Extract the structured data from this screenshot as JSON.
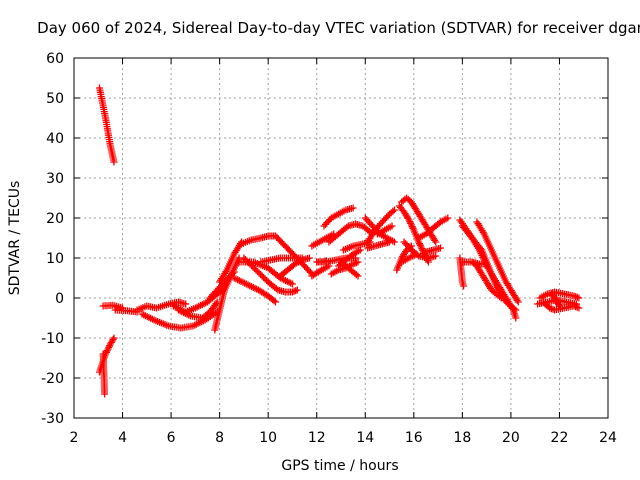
{
  "chart_data": {
    "type": "scatter",
    "title": "Day 060 of 2024, Sidereal Day-to-day VTEC variation (SDTVAR) for receiver dgar",
    "xlabel": "GPS time / hours",
    "ylabel": "SDTVAR / TECUs",
    "xlim": [
      2,
      24
    ],
    "ylim": [
      -30,
      60
    ],
    "xticks": [
      2,
      4,
      6,
      8,
      10,
      12,
      14,
      16,
      18,
      20,
      22,
      24
    ],
    "yticks": [
      -30,
      -20,
      -10,
      0,
      10,
      20,
      30,
      40,
      50,
      60
    ],
    "grid": true,
    "marker": "+",
    "color": "#ff0000",
    "tracks": [
      [
        [
          3.05,
          52.5
        ],
        [
          3.3,
          45
        ],
        [
          3.5,
          38
        ],
        [
          3.65,
          34
        ]
      ],
      [
        [
          3.05,
          -18.5
        ],
        [
          3.3,
          -14
        ],
        [
          3.5,
          -11.5
        ],
        [
          3.65,
          -10
        ]
      ],
      [
        [
          3.2,
          -14
        ],
        [
          3.22,
          -17
        ],
        [
          3.24,
          -20
        ],
        [
          3.26,
          -24
        ]
      ],
      [
        [
          3.2,
          -2
        ],
        [
          3.6,
          -1.8
        ],
        [
          4.0,
          -2.5
        ]
      ],
      [
        [
          3.7,
          -3
        ],
        [
          4.2,
          -3.2
        ],
        [
          4.6,
          -3.5
        ]
      ],
      [
        [
          4.6,
          -3
        ],
        [
          5.0,
          -2
        ],
        [
          5.4,
          -2.5
        ],
        [
          5.9,
          -1.5
        ],
        [
          6.3,
          -1
        ],
        [
          6.6,
          -1.5
        ]
      ],
      [
        [
          4.8,
          -4
        ],
        [
          5.3,
          -5.5
        ],
        [
          5.9,
          -7
        ],
        [
          6.4,
          -7.5
        ],
        [
          6.9,
          -7
        ],
        [
          7.4,
          -5.5
        ],
        [
          7.9,
          -3.5
        ]
      ],
      [
        [
          6.1,
          -2
        ],
        [
          6.6,
          -3.5
        ],
        [
          7.0,
          -2.5
        ],
        [
          7.5,
          -1
        ],
        [
          7.9,
          1
        ],
        [
          8.2,
          2.5
        ]
      ],
      [
        [
          6.3,
          -3
        ],
        [
          6.8,
          -4.5
        ],
        [
          7.3,
          -5
        ],
        [
          7.6,
          -3.5
        ],
        [
          7.9,
          -1
        ]
      ],
      [
        [
          7.8,
          -8
        ],
        [
          8.0,
          -3
        ],
        [
          8.2,
          2
        ],
        [
          8.5,
          6
        ],
        [
          8.8,
          10
        ]
      ],
      [
        [
          7.6,
          0
        ],
        [
          7.9,
          2
        ],
        [
          8.2,
          4
        ],
        [
          8.6,
          6.5
        ]
      ],
      [
        [
          8.0,
          4
        ],
        [
          8.3,
          7
        ],
        [
          8.6,
          11
        ],
        [
          8.9,
          14
        ]
      ],
      [
        [
          8.9,
          13.5
        ],
        [
          9.3,
          14.5
        ],
        [
          9.7,
          15
        ],
        [
          10.0,
          15.5
        ],
        [
          10.3,
          15.5
        ]
      ],
      [
        [
          9.0,
          10
        ],
        [
          9.5,
          7
        ],
        [
          10.0,
          4
        ],
        [
          10.4,
          2
        ],
        [
          10.7,
          1.5
        ],
        [
          11.0,
          1.5
        ],
        [
          11.2,
          2
        ]
      ],
      [
        [
          8.8,
          9
        ],
        [
          9.4,
          9
        ],
        [
          10.0,
          7.5
        ],
        [
          10.5,
          5
        ],
        [
          11.0,
          3.5
        ]
      ],
      [
        [
          8.6,
          5
        ],
        [
          9.1,
          3.5
        ],
        [
          9.6,
          2
        ],
        [
          10.0,
          0.5
        ],
        [
          10.3,
          -1
        ]
      ],
      [
        [
          10.3,
          15.5
        ],
        [
          10.7,
          13
        ],
        [
          11.1,
          10.5
        ],
        [
          11.5,
          8
        ],
        [
          11.8,
          6
        ]
      ],
      [
        [
          9.7,
          9
        ],
        [
          10.1,
          9.5
        ],
        [
          10.5,
          10
        ],
        [
          11.0,
          10
        ],
        [
          11.4,
          10
        ]
      ],
      [
        [
          10.5,
          5.5
        ],
        [
          10.8,
          7
        ],
        [
          11.1,
          8.5
        ],
        [
          11.4,
          9.5
        ],
        [
          11.7,
          10
        ]
      ],
      [
        [
          11.8,
          5.5
        ],
        [
          12.2,
          7
        ],
        [
          12.5,
          8
        ]
      ],
      [
        [
          12.0,
          9
        ],
        [
          12.2,
          9
        ],
        [
          12.4,
          9.3
        ]
      ],
      [
        [
          11.8,
          13
        ],
        [
          12.1,
          14
        ],
        [
          12.4,
          15
        ],
        [
          12.7,
          16
        ]
      ],
      [
        [
          12.3,
          18
        ],
        [
          12.6,
          20
        ],
        [
          12.9,
          21
        ],
        [
          13.2,
          22
        ],
        [
          13.5,
          22.5
        ]
      ],
      [
        [
          12.5,
          14
        ],
        [
          12.9,
          16
        ],
        [
          13.3,
          18
        ],
        [
          13.6,
          18.5
        ],
        [
          13.9,
          18
        ],
        [
          14.3,
          16
        ]
      ],
      [
        [
          12.4,
          9
        ],
        [
          12.8,
          9.5
        ],
        [
          13.2,
          10
        ],
        [
          13.6,
          10
        ]
      ],
      [
        [
          12.9,
          8
        ],
        [
          13.1,
          9
        ],
        [
          13.3,
          10
        ],
        [
          13.5,
          11
        ],
        [
          13.8,
          12
        ]
      ],
      [
        [
          13.0,
          9
        ],
        [
          13.3,
          7.5
        ],
        [
          13.5,
          6.5
        ],
        [
          13.7,
          5.5
        ]
      ],
      [
        [
          12.6,
          6
        ],
        [
          12.9,
          7
        ],
        [
          13.2,
          7.5
        ],
        [
          13.5,
          8.5
        ],
        [
          13.7,
          9
        ]
      ],
      [
        [
          13.1,
          12
        ],
        [
          13.5,
          13
        ],
        [
          13.9,
          13.5
        ],
        [
          14.2,
          14
        ]
      ],
      [
        [
          14.1,
          12.5
        ],
        [
          14.4,
          13
        ],
        [
          14.7,
          13.5
        ],
        [
          15.0,
          14
        ]
      ],
      [
        [
          14.0,
          20
        ],
        [
          14.3,
          18
        ],
        [
          14.6,
          16
        ],
        [
          14.9,
          15
        ],
        [
          15.2,
          14
        ]
      ],
      [
        [
          14.1,
          14
        ],
        [
          14.4,
          17
        ],
        [
          14.7,
          19
        ],
        [
          15.0,
          21
        ],
        [
          15.2,
          22
        ]
      ],
      [
        [
          14.5,
          16
        ],
        [
          14.8,
          17
        ],
        [
          15.1,
          18
        ]
      ],
      [
        [
          15.3,
          7
        ],
        [
          15.5,
          10
        ],
        [
          15.7,
          12
        ],
        [
          15.9,
          13
        ]
      ],
      [
        [
          15.5,
          24
        ],
        [
          15.7,
          25
        ],
        [
          15.9,
          24
        ],
        [
          16.1,
          22
        ],
        [
          16.3,
          20
        ],
        [
          16.5,
          18
        ],
        [
          16.7,
          16
        ],
        [
          16.9,
          14
        ]
      ],
      [
        [
          15.4,
          23
        ],
        [
          15.6,
          21.5
        ],
        [
          15.8,
          19.5
        ],
        [
          16.0,
          17
        ],
        [
          16.2,
          14
        ],
        [
          16.4,
          11.5
        ],
        [
          16.6,
          9
        ]
      ],
      [
        [
          15.6,
          14
        ],
        [
          15.9,
          12
        ],
        [
          16.2,
          10.5
        ],
        [
          16.6,
          10
        ],
        [
          16.9,
          10.5
        ]
      ],
      [
        [
          15.5,
          9
        ],
        [
          15.8,
          10
        ],
        [
          16.1,
          11
        ]
      ],
      [
        [
          16.2,
          15
        ],
        [
          16.5,
          16
        ],
        [
          16.8,
          17.5
        ],
        [
          17.1,
          19
        ],
        [
          17.4,
          20
        ]
      ],
      [
        [
          16.5,
          11.5
        ],
        [
          16.8,
          12
        ],
        [
          17.1,
          12.5
        ]
      ],
      [
        [
          17.9,
          10
        ],
        [
          17.95,
          7
        ],
        [
          18.0,
          4
        ],
        [
          18.05,
          3
        ]
      ],
      [
        [
          17.9,
          19.5
        ],
        [
          18.3,
          16
        ],
        [
          18.7,
          12
        ],
        [
          19.1,
          7
        ],
        [
          19.5,
          3
        ],
        [
          19.8,
          0
        ],
        [
          20.1,
          -3
        ],
        [
          20.2,
          -5
        ]
      ],
      [
        [
          18.0,
          18
        ],
        [
          18.4,
          15
        ],
        [
          18.8,
          12
        ],
        [
          19.0,
          9
        ],
        [
          19.2,
          6
        ],
        [
          19.4,
          3
        ],
        [
          19.6,
          1
        ],
        [
          19.8,
          -1
        ],
        [
          20.0,
          -2
        ],
        [
          20.2,
          -3
        ]
      ],
      [
        [
          18.6,
          19
        ],
        [
          18.9,
          16
        ],
        [
          19.2,
          12
        ],
        [
          19.5,
          8
        ],
        [
          19.8,
          4
        ],
        [
          20.1,
          1
        ],
        [
          20.3,
          -1
        ]
      ],
      [
        [
          18.0,
          9
        ],
        [
          18.4,
          9
        ],
        [
          18.7,
          8.5
        ],
        [
          19.0,
          8.5
        ]
      ],
      [
        [
          18.4,
          9
        ],
        [
          18.6,
          8
        ],
        [
          18.8,
          6
        ],
        [
          19.0,
          4
        ],
        [
          19.2,
          2
        ],
        [
          19.4,
          1
        ],
        [
          19.6,
          0
        ]
      ],
      [
        [
          21.1,
          -1.5
        ],
        [
          21.5,
          -1
        ],
        [
          21.9,
          -0.5
        ],
        [
          22.3,
          -1
        ],
        [
          22.7,
          -1.5
        ]
      ],
      [
        [
          21.2,
          0
        ],
        [
          21.5,
          1
        ],
        [
          21.8,
          1.5
        ],
        [
          22.2,
          1
        ],
        [
          22.6,
          0.5
        ],
        [
          22.8,
          0
        ]
      ],
      [
        [
          21.4,
          -1.5
        ],
        [
          21.6,
          -2.5
        ],
        [
          21.8,
          -3
        ],
        [
          22.2,
          -2.5
        ],
        [
          22.6,
          -2
        ],
        [
          22.8,
          -2.5
        ]
      ],
      [
        [
          21.7,
          1
        ],
        [
          21.8,
          0
        ],
        [
          21.9,
          -1
        ],
        [
          22.0,
          -2
        ]
      ]
    ]
  }
}
